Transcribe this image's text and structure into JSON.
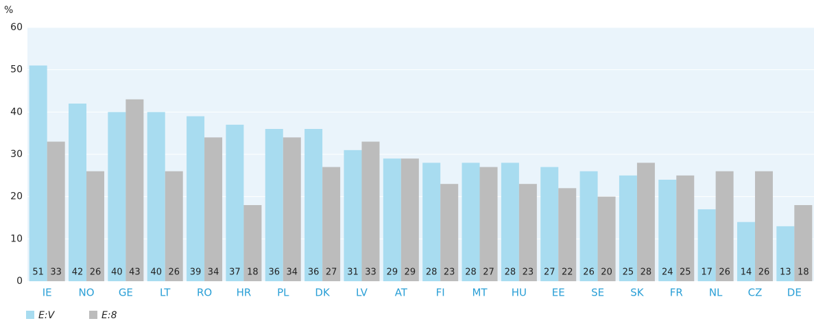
{
  "chart_data": {
    "type": "bar",
    "y_label": "%",
    "categories": [
      "IE",
      "NO",
      "GE",
      "LT",
      "RO",
      "HR",
      "PL",
      "DK",
      "LV",
      "AT",
      "FI",
      "MT",
      "HU",
      "EE",
      "SE",
      "SK",
      "FR",
      "NL",
      "CZ",
      "DE"
    ],
    "series": [
      {
        "name": "E:V",
        "color": "#a8dcf0",
        "values": [
          51,
          42,
          40,
          40,
          39,
          37,
          36,
          36,
          31,
          29,
          28,
          28,
          28,
          27,
          26,
          25,
          24,
          17,
          14,
          13
        ]
      },
      {
        "name": "E:8",
        "color": "#bcbcbc",
        "values": [
          33,
          26,
          43,
          26,
          34,
          18,
          34,
          27,
          33,
          29,
          23,
          27,
          23,
          22,
          20,
          28,
          25,
          26,
          26,
          18
        ]
      }
    ],
    "ylim": [
      0,
      60
    ],
    "yticks": [
      0,
      10,
      20,
      30,
      40,
      50,
      60
    ],
    "grid": true,
    "legend": "bottom-left"
  }
}
